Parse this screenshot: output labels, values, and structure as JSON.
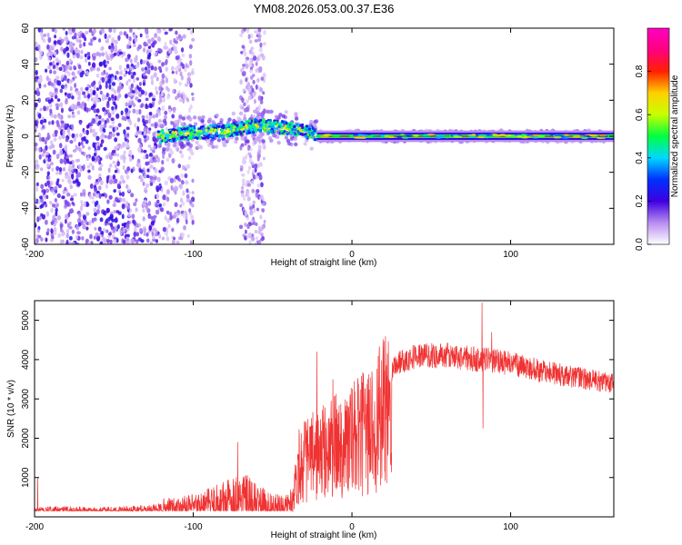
{
  "chart_data": [
    {
      "type": "heatmap",
      "title": "YM08.2026.053.00.37.E36",
      "xlabel": "Height of straight line (km)",
      "ylabel": "Frequency (Hz)",
      "xlim": [
        -200,
        165
      ],
      "ylim": [
        -60,
        60
      ],
      "xticks": [
        -200,
        -100,
        0,
        100
      ],
      "xtick_labels": [
        "-200",
        "-100",
        "0",
        "100"
      ],
      "yticks": [
        -60,
        -40,
        -20,
        0,
        20,
        40,
        60
      ],
      "ytick_labels": [
        "-60",
        "-40",
        "-20",
        "0",
        "20",
        "40",
        "60"
      ],
      "colorbar": {
        "label": "Normalized spectral amplitude",
        "range": [
          0,
          1
        ],
        "ticks": [
          0.0,
          0.2,
          0.4,
          0.6,
          0.8
        ],
        "tick_labels": [
          "0.0",
          "0.2",
          "0.4",
          "0.6",
          "0.8"
        ],
        "colors": [
          "#ffffff",
          "#b88cf0",
          "#3d00e0",
          "#0030ff",
          "#00d8ff",
          "#00ff40",
          "#c8ff00",
          "#ffd000",
          "#ff2000",
          "#ff0080",
          "#ff00c0"
        ]
      },
      "noise_regions": [
        {
          "x_range": [
            -200,
            -120
          ],
          "density": "high"
        },
        {
          "x_range": [
            -120,
            -100
          ],
          "density": "medium"
        },
        {
          "x_range": [
            -70,
            -55
          ],
          "density": "medium"
        }
      ],
      "signal_band": {
        "ridge_points": [
          [
            -120,
            0
          ],
          [
            -100,
            2
          ],
          [
            -80,
            3
          ],
          [
            -60,
            6
          ],
          [
            -45,
            5
          ],
          [
            -30,
            3
          ],
          [
            -20,
            0
          ],
          [
            0,
            0
          ],
          [
            50,
            0
          ],
          [
            100,
            0
          ],
          [
            165,
            0
          ]
        ],
        "strong_from": -22
      }
    },
    {
      "type": "line",
      "xlabel": "Height of straight line (km)",
      "ylabel": "SNR (10 * v/v)",
      "xlim": [
        -200,
        165
      ],
      "ylim": [
        0,
        5500
      ],
      "xticks": [
        -200,
        -100,
        0,
        100
      ],
      "xtick_labels": [
        "-200",
        "-100",
        "0",
        "100"
      ],
      "yticks": [
        1000,
        2000,
        3000,
        4000,
        5000
      ],
      "ytick_labels": [
        "1000",
        "2000",
        "3000",
        "4000",
        "5000"
      ],
      "line_color": "#f03232",
      "envelope": [
        [
          -200,
          300
        ],
        [
          -180,
          320
        ],
        [
          -160,
          300
        ],
        [
          -140,
          330
        ],
        [
          -120,
          400
        ],
        [
          -100,
          480
        ],
        [
          -85,
          700
        ],
        [
          -75,
          900
        ],
        [
          -68,
          950
        ],
        [
          -60,
          700
        ],
        [
          -50,
          500
        ],
        [
          -42,
          450
        ],
        [
          -37,
          700
        ],
        [
          -34,
          1800
        ],
        [
          -30,
          2000
        ],
        [
          -25,
          2100
        ],
        [
          -20,
          2200
        ],
        [
          -10,
          2500
        ],
        [
          0,
          2700
        ],
        [
          10,
          3000
        ],
        [
          20,
          3600
        ],
        [
          30,
          3950
        ],
        [
          40,
          4100
        ],
        [
          60,
          4100
        ],
        [
          80,
          4000
        ],
        [
          85,
          4000
        ],
        [
          100,
          3900
        ],
        [
          120,
          3700
        ],
        [
          140,
          3550
        ],
        [
          165,
          3400
        ]
      ],
      "spikes": [
        {
          "x": -198,
          "y": 1000
        },
        {
          "x": -72,
          "y": 1900
        },
        {
          "x": -22,
          "y": 4200
        },
        {
          "x": -12,
          "y": 3500
        },
        {
          "x": 82,
          "y": 5450
        },
        {
          "x": 82.5,
          "y": 2250
        },
        {
          "x": 88,
          "y": 4700
        }
      ]
    }
  ]
}
